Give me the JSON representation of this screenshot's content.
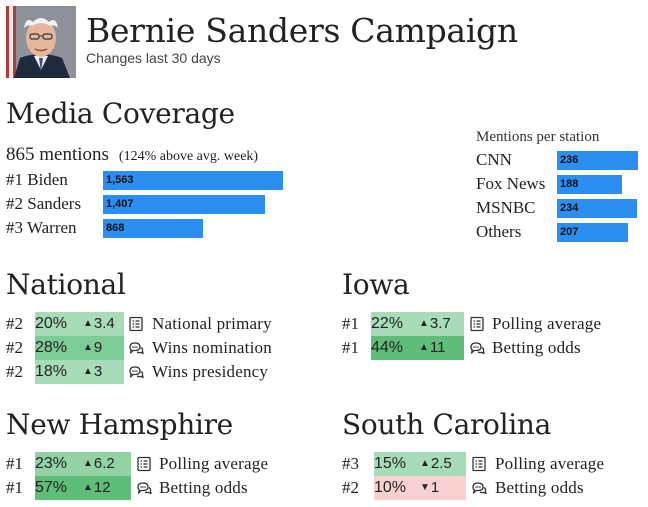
{
  "header": {
    "title": "Bernie Sanders Campaign",
    "subtitle": "Changes last 30 days"
  },
  "media": {
    "title": "Media Coverage",
    "mentions": "865 mentions",
    "note": "(124% above avg. week)",
    "candidates": [
      {
        "rank": "#1",
        "name": "Biden",
        "value": 1563,
        "display": "1,563"
      },
      {
        "rank": "#2",
        "name": "Sanders",
        "value": 1407,
        "display": "1,407"
      },
      {
        "rank": "#3",
        "name": "Warren",
        "value": 868,
        "display": "868"
      }
    ],
    "stations_caption": "Mentions per station",
    "stations": [
      {
        "name": "CNN",
        "value": 236,
        "display": "236"
      },
      {
        "name": "Fox News",
        "value": 188,
        "display": "188"
      },
      {
        "name": "MSNBC",
        "value": 234,
        "display": "234"
      },
      {
        "name": "Others",
        "value": 207,
        "display": "207"
      }
    ]
  },
  "national": {
    "title": "National",
    "rows": [
      {
        "rank": "#2",
        "pct": "20%",
        "change": "3.4",
        "direction": "up",
        "label": "National primary",
        "icon": "list-icon",
        "color": "#a8dbb8"
      },
      {
        "rank": "#2",
        "pct": "28%",
        "change": "9",
        "direction": "up",
        "label": "Wins nomination",
        "icon": "chat-icon",
        "color": "#7ccc95"
      },
      {
        "rank": "#2",
        "pct": "18%",
        "change": "3",
        "direction": "up",
        "label": "Wins presidency",
        "icon": "chat-icon",
        "color": "#a8dbb8"
      }
    ]
  },
  "iowa": {
    "title": "Iowa",
    "rows": [
      {
        "rank": "#1",
        "pct": "22%",
        "change": "3.7",
        "direction": "up",
        "label": "Polling average",
        "icon": "list-icon",
        "color": "#a8dbb8"
      },
      {
        "rank": "#1",
        "pct": "44%",
        "change": "11",
        "direction": "up",
        "label": "Betting odds",
        "icon": "chat-icon",
        "color": "#5ebd78"
      }
    ]
  },
  "new_hampshire": {
    "title": "New Hamsphire",
    "rows": [
      {
        "rank": "#1",
        "pct": "23%",
        "change": "6.2",
        "direction": "up",
        "label": "Polling average",
        "icon": "list-icon",
        "color": "#92d3a6"
      },
      {
        "rank": "#1",
        "pct": "57%",
        "change": "12",
        "direction": "up",
        "label": "Betting odds",
        "icon": "chat-icon",
        "color": "#5ebd78"
      }
    ]
  },
  "south_carolina": {
    "title": "South Carolina",
    "rows": [
      {
        "rank": "#3",
        "pct": "15%",
        "change": "2.5",
        "direction": "up",
        "label": "Polling average",
        "icon": "list-icon",
        "color": "#a8dbb8"
      },
      {
        "rank": "#2",
        "pct": "10%",
        "change": "1",
        "direction": "down",
        "label": "Betting odds",
        "icon": "chat-icon",
        "color": "#f7d1cf"
      }
    ]
  },
  "colors": {
    "bar": "#2b8ff2"
  }
}
